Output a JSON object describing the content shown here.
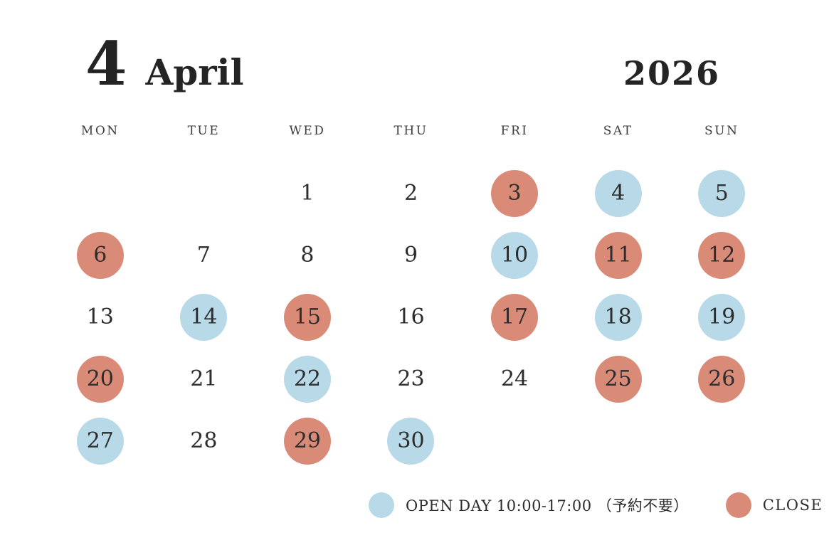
{
  "calendar": {
    "month_number": "4",
    "month_name": "April",
    "year": "2026",
    "weekday_headers": [
      "MON",
      "TUE",
      "WED",
      "THU",
      "FRI",
      "SAT",
      "SUN"
    ],
    "weeks": [
      [
        {
          "day": "",
          "status": "none"
        },
        {
          "day": "",
          "status": "none"
        },
        {
          "day": "1",
          "status": "none"
        },
        {
          "day": "2",
          "status": "none"
        },
        {
          "day": "3",
          "status": "close"
        },
        {
          "day": "4",
          "status": "open"
        },
        {
          "day": "5",
          "status": "open"
        }
      ],
      [
        {
          "day": "6",
          "status": "close"
        },
        {
          "day": "7",
          "status": "none"
        },
        {
          "day": "8",
          "status": "none"
        },
        {
          "day": "9",
          "status": "none"
        },
        {
          "day": "10",
          "status": "open"
        },
        {
          "day": "11",
          "status": "close"
        },
        {
          "day": "12",
          "status": "close"
        }
      ],
      [
        {
          "day": "13",
          "status": "none"
        },
        {
          "day": "14",
          "status": "open"
        },
        {
          "day": "15",
          "status": "close"
        },
        {
          "day": "16",
          "status": "none"
        },
        {
          "day": "17",
          "status": "close"
        },
        {
          "day": "18",
          "status": "open"
        },
        {
          "day": "19",
          "status": "open"
        }
      ],
      [
        {
          "day": "20",
          "status": "close"
        },
        {
          "day": "21",
          "status": "none"
        },
        {
          "day": "22",
          "status": "open"
        },
        {
          "day": "23",
          "status": "none"
        },
        {
          "day": "24",
          "status": "none"
        },
        {
          "day": "25",
          "status": "close"
        },
        {
          "day": "26",
          "status": "close"
        }
      ],
      [
        {
          "day": "27",
          "status": "open"
        },
        {
          "day": "28",
          "status": "none"
        },
        {
          "day": "29",
          "status": "close"
        },
        {
          "day": "30",
          "status": "open"
        },
        {
          "day": "",
          "status": "none"
        },
        {
          "day": "",
          "status": "none"
        },
        {
          "day": "",
          "status": "none"
        }
      ]
    ],
    "legend": {
      "open_label": "OPEN DAY 10:00-17:00 （予約不要）",
      "close_label": "CLOSE"
    },
    "colors": {
      "open": "#b7d9e8",
      "close": "#d98b77",
      "text": "#2d2d2d"
    }
  }
}
